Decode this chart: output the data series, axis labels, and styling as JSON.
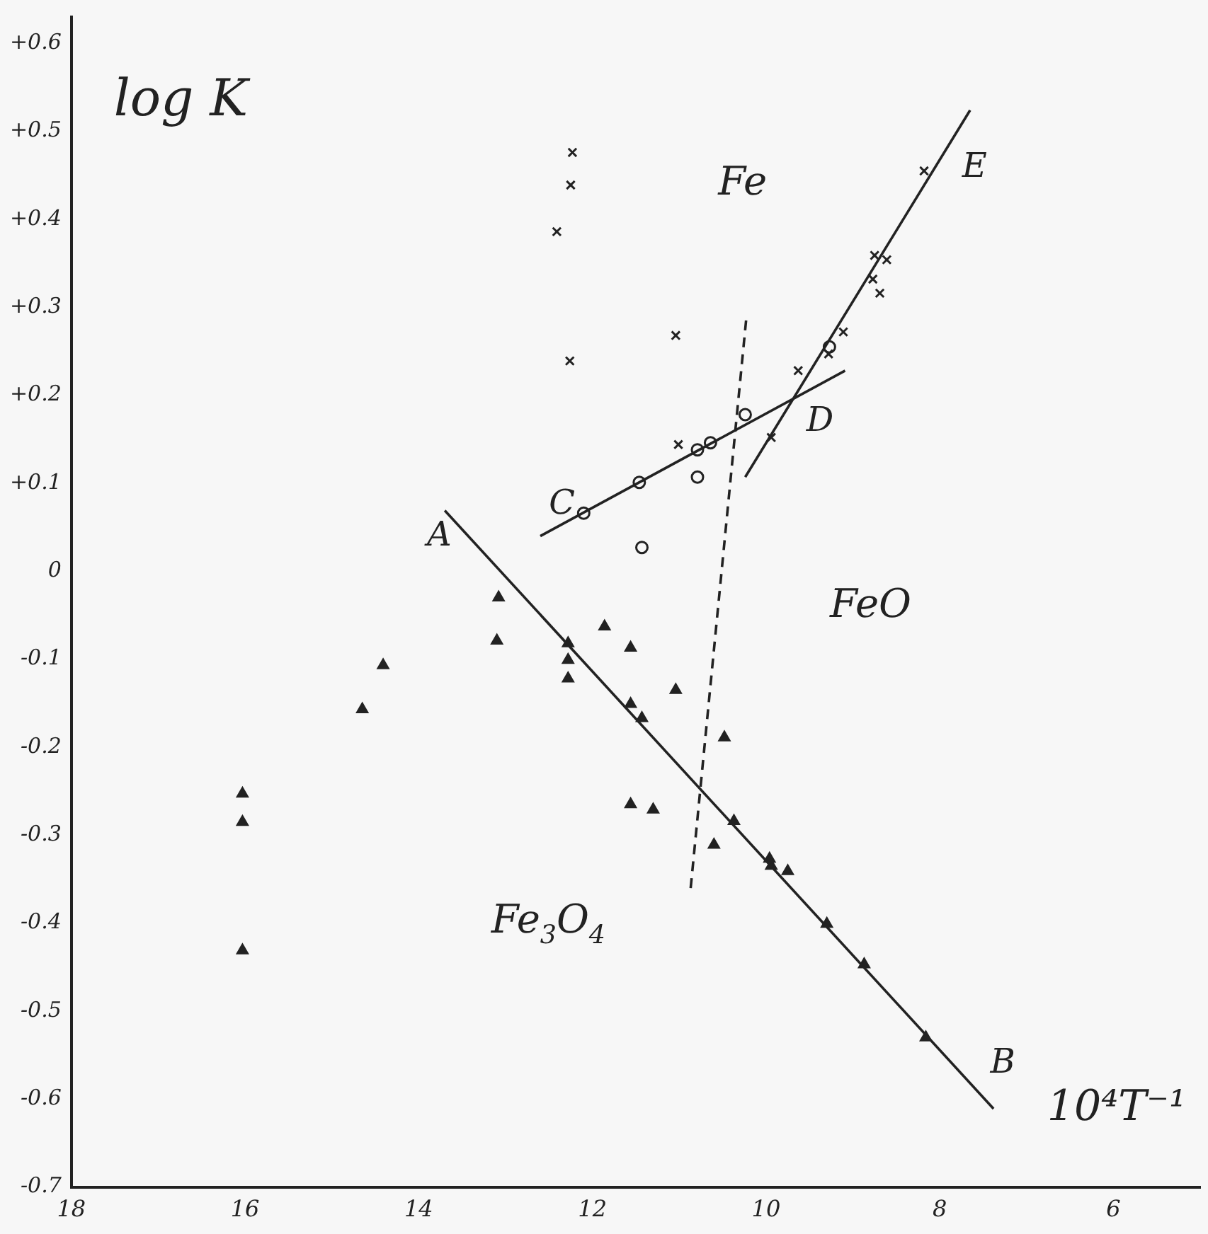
{
  "chart_data": {
    "type": "scatter",
    "xlabel": "10⁴T⁻¹",
    "ylabel": "log K",
    "xlim": [
      18,
      5
    ],
    "ylim": [
      -0.7,
      0.63
    ],
    "xticks": [
      18,
      16,
      14,
      12,
      10,
      8,
      6
    ],
    "yticks": [
      {
        "value": 0.6,
        "label": "+0.6"
      },
      {
        "value": 0.5,
        "label": "+0.5"
      },
      {
        "value": 0.4,
        "label": "+0.4"
      },
      {
        "value": 0.3,
        "label": "+0.3"
      },
      {
        "value": 0.2,
        "label": "+0.2"
      },
      {
        "value": 0.1,
        "label": "+0.1"
      },
      0,
      -0.1,
      -0.2,
      -0.3,
      -0.4,
      -0.5,
      -0.6,
      -0.7
    ],
    "grid": false,
    "legend": false,
    "series": [
      {
        "marker": "cross",
        "color": "#222222",
        "x": [
          12.23,
          12.25,
          12.41,
          12.26,
          11.04,
          11.01,
          9.94,
          9.63,
          9.28,
          9.11,
          8.75,
          8.61,
          8.77,
          8.69,
          8.18
        ],
        "values": [
          0.476,
          0.439,
          0.386,
          0.239,
          0.268,
          0.144,
          0.152,
          0.228,
          0.247,
          0.272,
          0.359,
          0.354,
          0.332,
          0.316,
          0.455
        ]
      },
      {
        "marker": "circle",
        "color": "#222222",
        "x": [
          12.1,
          11.46,
          10.79,
          10.64,
          10.24,
          10.79,
          11.43,
          9.27
        ],
        "values": [
          0.066,
          0.101,
          0.138,
          0.146,
          0.178,
          0.107,
          0.027,
          0.255
        ]
      },
      {
        "marker": "triangle",
        "color": "#222222",
        "x": [
          13.08,
          13.1,
          14.41,
          14.65,
          16.03,
          16.03,
          16.03,
          12.28,
          12.28,
          12.28,
          11.86,
          11.56,
          11.56,
          11.43,
          11.04,
          11.56,
          11.3,
          10.48,
          10.6,
          10.37,
          9.96,
          9.94,
          9.75,
          9.3,
          8.87,
          8.16
        ],
        "values": [
          -0.03,
          -0.079,
          -0.107,
          -0.157,
          -0.253,
          -0.285,
          -0.431,
          -0.082,
          -0.101,
          -0.122,
          -0.063,
          -0.087,
          -0.151,
          -0.167,
          -0.135,
          -0.265,
          -0.271,
          -0.189,
          -0.311,
          -0.284,
          -0.327,
          -0.335,
          -0.341,
          -0.401,
          -0.447,
          -0.53
        ]
      },
      {
        "type": "line",
        "marker": "none",
        "line_style": "solid",
        "color": "#222222",
        "x": [
          13.7,
          7.38
        ],
        "values": [
          0.069,
          -0.611
        ]
      },
      {
        "type": "line",
        "marker": "none",
        "line_style": "solid",
        "color": "#222222",
        "x": [
          12.6,
          9.09
        ],
        "values": [
          0.04,
          0.228
        ]
      },
      {
        "type": "line",
        "marker": "none",
        "line_style": "solid",
        "color": "#222222",
        "x": [
          10.24,
          7.65
        ],
        "values": [
          0.107,
          0.524
        ]
      },
      {
        "type": "line",
        "marker": "none",
        "line_style": "dashed",
        "color": "#222222",
        "x": [
          10.23,
          10.87
        ],
        "values": [
          0.285,
          -0.362
        ]
      }
    ],
    "annotations": [
      "Fe",
      "FeO",
      "Fe$_{3}$O$_{4}$",
      "A",
      "B",
      "C",
      "D",
      "E"
    ]
  }
}
